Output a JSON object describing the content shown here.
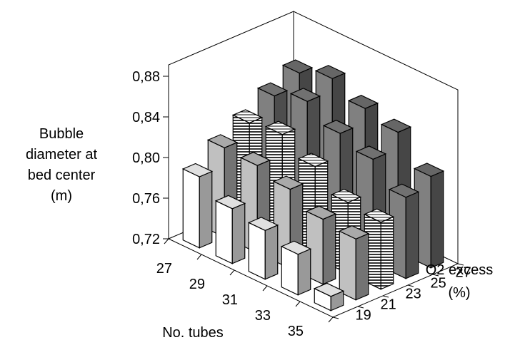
{
  "chart_data": {
    "type": "bar3d",
    "ylabel": "Bubble\ndiameter at\nbed center\n(m)",
    "xlabel": "No. tubes",
    "zlabel": "O2 excess\n(%)",
    "x": [
      27,
      29,
      31,
      33,
      35
    ],
    "z": [
      19,
      21,
      23,
      25,
      27
    ],
    "y_ticks": [
      "0,72",
      "0,76",
      "0,80",
      "0,84",
      "0,88"
    ],
    "ylim": [
      0.72,
      0.88
    ],
    "grid": false,
    "series": [
      {
        "z": 19,
        "values": [
          0.79,
          0.774,
          0.768,
          0.76,
          0.734
        ]
      },
      {
        "z": 21,
        "values": [
          0.808,
          0.806,
          0.798,
          0.784,
          0.78
        ]
      },
      {
        "z": 23,
        "values": [
          0.822,
          0.826,
          0.81,
          0.79,
          0.786
        ]
      },
      {
        "z": 25,
        "values": [
          0.838,
          0.848,
          0.832,
          0.822,
          0.8
        ]
      },
      {
        "z": 27,
        "values": [
          0.85,
          0.86,
          0.846,
          0.838,
          0.81
        ]
      }
    ],
    "colors": {
      "bar_fills": [
        "#ffffff",
        "#c0c0c0",
        "#ffffff",
        "#808080"
      ],
      "edge": "#000000"
    }
  }
}
